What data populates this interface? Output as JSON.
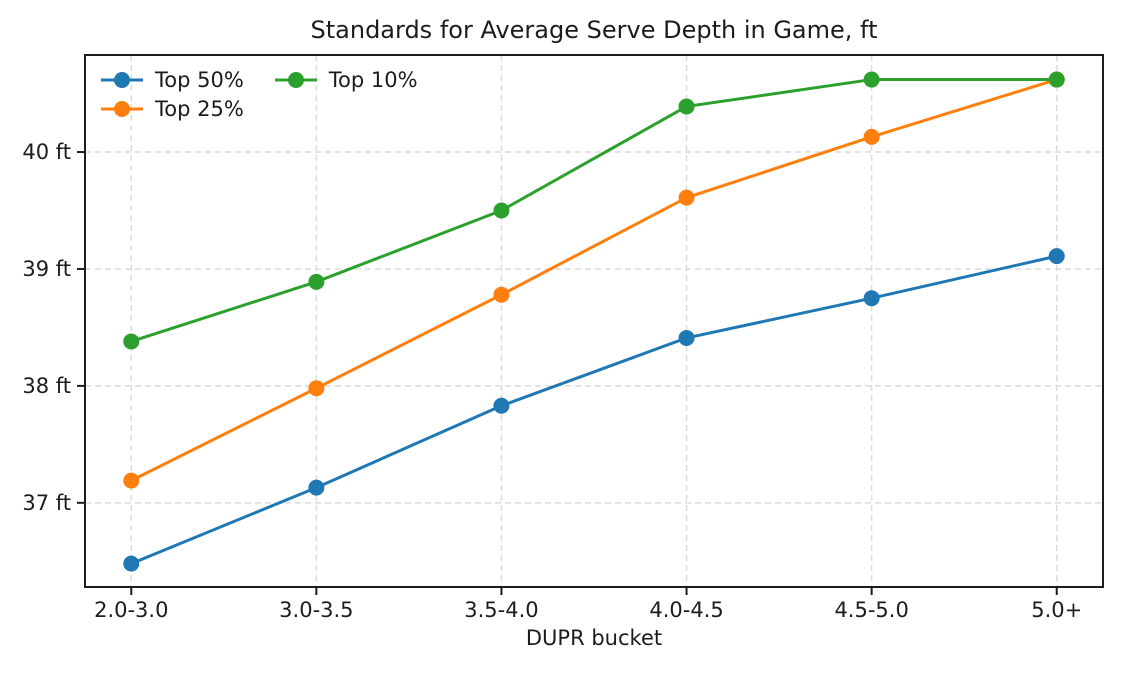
{
  "chart_data": {
    "type": "line",
    "title": "Standards for Average Serve Depth in Game, ft",
    "xlabel": "DUPR bucket",
    "ylabel": "",
    "categories": [
      "2.0-3.0",
      "3.0-3.5",
      "3.5-4.0",
      "4.0-4.5",
      "4.5-5.0",
      "5.0+"
    ],
    "series": [
      {
        "name": "Top 50%",
        "color": "#1f77b4",
        "values": [
          36.48,
          37.13,
          37.83,
          38.41,
          38.75,
          39.11
        ]
      },
      {
        "name": "Top 25%",
        "color": "#ff7f0e",
        "values": [
          37.19,
          37.98,
          38.78,
          39.61,
          40.13,
          40.62
        ]
      },
      {
        "name": "Top 10%",
        "color": "#2ca02c",
        "values": [
          38.38,
          38.89,
          39.5,
          40.39,
          40.62,
          40.62
        ]
      }
    ],
    "yticks": [
      {
        "value": 37,
        "label": "37 ft"
      },
      {
        "value": 38,
        "label": "38 ft"
      },
      {
        "value": 39,
        "label": "39 ft"
      },
      {
        "value": 40,
        "label": "40 ft"
      }
    ],
    "ylim": [
      36.28,
      40.83
    ],
    "grid": true,
    "grid_style": "dashed",
    "legend_position": "upper-left",
    "legend_ncols": 2,
    "marker": "circle"
  }
}
